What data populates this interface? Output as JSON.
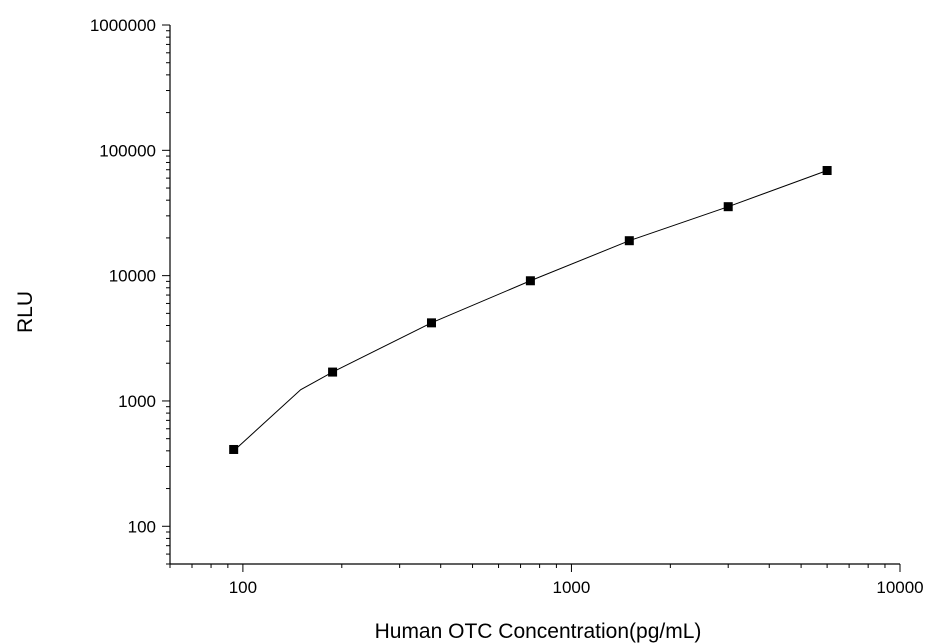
{
  "chart_data": {
    "type": "scatter",
    "xlabel": "Human OTC Concentration(pg/mL)",
    "ylabel": "RLU",
    "x_scale": "log",
    "y_scale": "log",
    "xlim": [
      60,
      10000
    ],
    "ylim": [
      50,
      1000000
    ],
    "x_ticks": [
      {
        "value": 100,
        "label": "100"
      },
      {
        "value": 1000,
        "label": "1000"
      },
      {
        "value": 10000,
        "label": "10000"
      }
    ],
    "y_ticks": [
      {
        "value": 100,
        "label": "100"
      },
      {
        "value": 1000,
        "label": "1000"
      },
      {
        "value": 10000,
        "label": "10000"
      },
      {
        "value": 100000,
        "label": "100000"
      },
      {
        "value": 1000000,
        "label": "1000000"
      }
    ],
    "points": {
      "x": [
        93.75,
        187.5,
        375,
        750,
        1500,
        3000,
        6000
      ],
      "y": [
        410,
        1700,
        4200,
        9100,
        19000,
        35500,
        69000
      ]
    },
    "fit_curve": {
      "x": [
        93.75,
        150,
        187.5,
        375,
        750,
        1500,
        3000,
        6000
      ],
      "y": [
        400,
        1230,
        1700,
        4200,
        9100,
        19000,
        35500,
        69000
      ]
    },
    "marker_color": "#000000",
    "line_color": "#000000",
    "grid": false,
    "legend": "none"
  }
}
